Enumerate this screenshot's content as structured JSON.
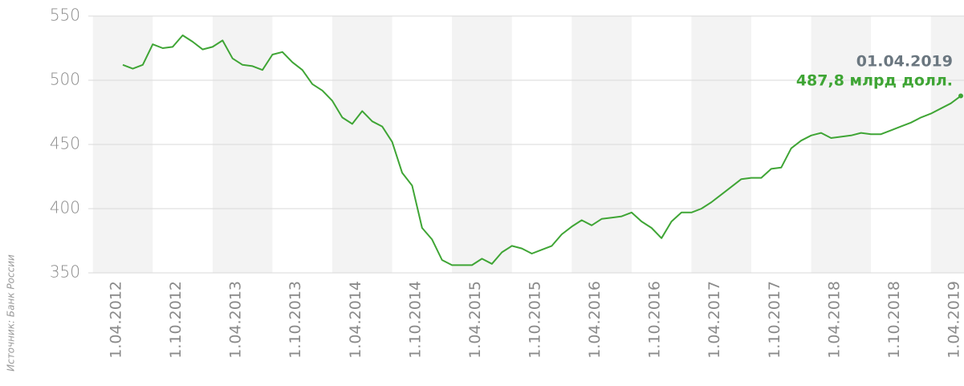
{
  "chart_data": {
    "type": "line",
    "source": "Источник: Банк России",
    "categories": [
      "1.04.2012",
      null,
      null,
      null,
      null,
      null,
      "1.10.2012",
      null,
      null,
      null,
      null,
      null,
      "1.04.2013",
      null,
      null,
      null,
      null,
      null,
      "1.10.2013",
      null,
      null,
      null,
      null,
      null,
      "1.04.2014",
      null,
      null,
      null,
      null,
      null,
      "1.10.2014",
      null,
      null,
      null,
      null,
      null,
      "1.04.2015",
      null,
      null,
      null,
      null,
      null,
      "1.10.2015",
      null,
      null,
      null,
      null,
      null,
      "1.04.2016",
      null,
      null,
      null,
      null,
      null,
      "1.10.2016",
      null,
      null,
      null,
      null,
      null,
      "1.04.2017",
      null,
      null,
      null,
      null,
      null,
      "1.10.2017",
      null,
      null,
      null,
      null,
      null,
      "1.04.2018",
      null,
      null,
      null,
      null,
      null,
      "1.10.2018",
      null,
      null,
      null,
      null,
      null,
      "1.04.2019"
    ],
    "series": [
      {
        "color": "#3fa535",
        "values": [
          512,
          509,
          512,
          528,
          525,
          526,
          535,
          530,
          524,
          526,
          531,
          517,
          512,
          511,
          508,
          520,
          522,
          514,
          508,
          497,
          492,
          484,
          471,
          466,
          476,
          468,
          464,
          452,
          428,
          418,
          385,
          376,
          360,
          356,
          356,
          356,
          361,
          357,
          366,
          371,
          369,
          365,
          368,
          371,
          380,
          386,
          391,
          387,
          392,
          393,
          394,
          397,
          390,
          385,
          377,
          390,
          397,
          397,
          400,
          405,
          411,
          417,
          423,
          424,
          424,
          431,
          432,
          447,
          453,
          457,
          459,
          455,
          456,
          457,
          459,
          458,
          458,
          461,
          464,
          467,
          471,
          474,
          478,
          482,
          487.8
        ]
      }
    ],
    "ylim": [
      350,
      550
    ],
    "yticks": [
      350,
      400,
      450,
      500,
      550
    ],
    "grid": true,
    "annotation": {
      "date": "01.04.2019",
      "label": "487,8 млрд долл."
    }
  }
}
